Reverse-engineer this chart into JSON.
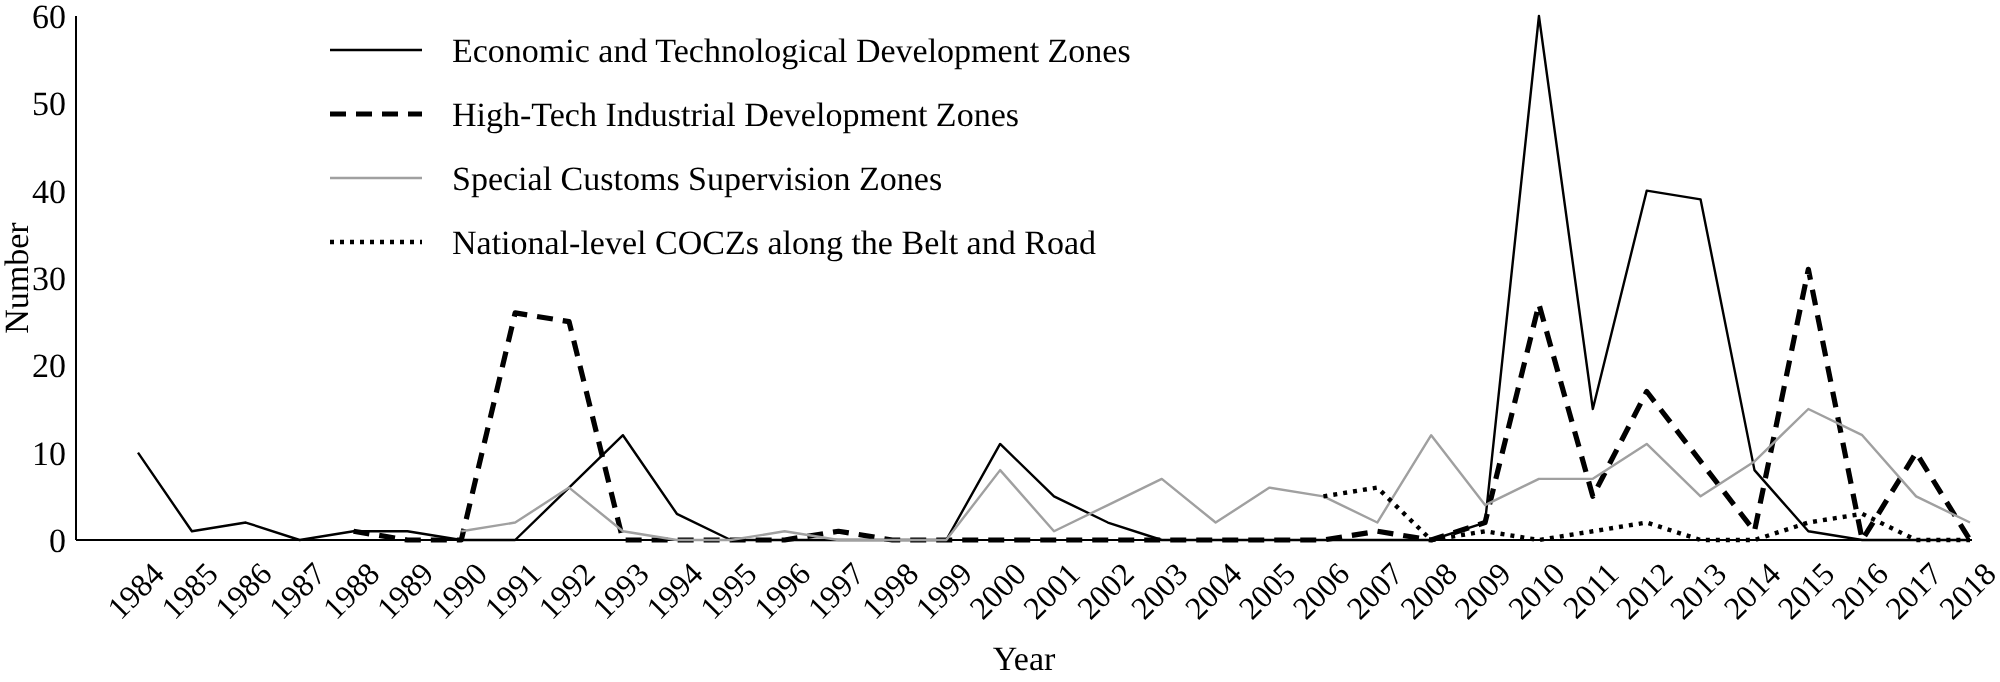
{
  "chart_data": {
    "type": "line",
    "xlabel": "Year",
    "ylabel": "Number",
    "categories": [
      "1984",
      "1985",
      "1986",
      "1987",
      "1988",
      "1989",
      "1990",
      "1991",
      "1992",
      "1993",
      "1994",
      "1995",
      "1996",
      "1997",
      "1998",
      "1999",
      "2000",
      "2001",
      "2002",
      "2003",
      "2004",
      "2005",
      "2006",
      "2007",
      "2008",
      "2009",
      "2010",
      "2011",
      "2012",
      "2013",
      "2014",
      "2015",
      "2016",
      "2017",
      "2018"
    ],
    "ylim": [
      0,
      60
    ],
    "yticks": [
      0,
      10,
      20,
      30,
      40,
      50,
      60
    ],
    "grid": false,
    "legend": "top",
    "marker": "none",
    "series": [
      {
        "name": "Economic and Technological Development Zones",
        "color": "#000000",
        "line_style": "solid",
        "values": [
          10,
          1,
          2,
          0,
          1,
          1,
          0,
          0,
          6,
          12,
          3,
          0,
          0,
          0,
          0,
          0,
          11,
          5,
          2,
          0,
          0,
          0,
          0,
          0,
          0,
          2,
          60,
          15,
          40,
          39,
          8,
          1,
          0,
          0,
          0
        ]
      },
      {
        "name": "High-Tech Industrial Development Zones",
        "color": "#000000",
        "line_style": "dashed",
        "values": [
          null,
          null,
          null,
          null,
          1,
          0,
          0,
          26,
          25,
          0,
          0,
          0,
          0,
          1,
          0,
          0,
          0,
          0,
          0,
          0,
          0,
          0,
          0,
          1,
          0,
          2,
          27,
          5,
          17,
          9,
          1,
          31,
          0,
          10,
          0
        ]
      },
      {
        "name": "Special Customs Supervision Zones",
        "color": "#a0a0a0",
        "line_style": "solid",
        "values": [
          null,
          null,
          null,
          null,
          null,
          null,
          1,
          2,
          6,
          1,
          0,
          0,
          1,
          0,
          0,
          0,
          8,
          1,
          4,
          7,
          2,
          6,
          5,
          2,
          12,
          4,
          7,
          7,
          11,
          5,
          9,
          15,
          12,
          5,
          2
        ]
      },
      {
        "name": "National-level COCZs along the Belt and Road",
        "color": "#000000",
        "line_style": "dotted",
        "values": [
          null,
          null,
          null,
          null,
          null,
          null,
          null,
          null,
          null,
          null,
          null,
          null,
          null,
          null,
          null,
          null,
          null,
          null,
          null,
          null,
          null,
          null,
          5,
          6,
          0,
          1,
          0,
          1,
          2,
          0,
          0,
          2,
          3,
          0,
          0
        ]
      }
    ]
  }
}
